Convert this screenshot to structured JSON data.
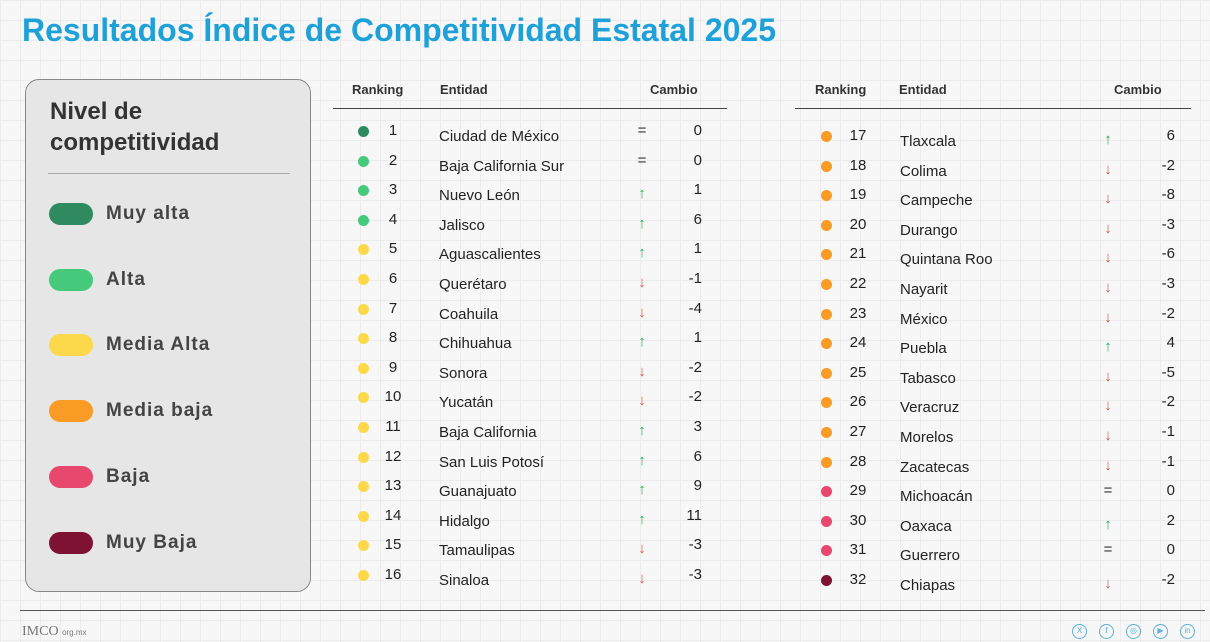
{
  "title": "Resultados Índice de Competitividad Estatal 2025",
  "colors": {
    "title": "#1ea1d8",
    "muy_alta": "#2f8a5f",
    "alta": "#45c97a",
    "media_alta": "#fcd94a",
    "media_baja": "#f99b25",
    "baja": "#e8476e",
    "muy_baja": "#7d1233",
    "up": "#2eaa5a",
    "down": "#d9534f"
  },
  "legend": {
    "title": "Nivel de competitividad",
    "items": [
      {
        "key": "muy_alta",
        "label": "Muy alta"
      },
      {
        "key": "alta",
        "label": "Alta"
      },
      {
        "key": "media_alta",
        "label": "Media Alta"
      },
      {
        "key": "media_baja",
        "label": "Media baja"
      },
      {
        "key": "baja",
        "label": "Baja"
      },
      {
        "key": "muy_baja",
        "label": "Muy Baja"
      }
    ]
  },
  "headers": {
    "ranking": "Ranking",
    "entidad": "Entidad",
    "cambio": "Cambio"
  },
  "rows": [
    {
      "rank": "1",
      "entity": "Ciudad de México",
      "level": "muy_alta",
      "dir": "eq",
      "change": "0"
    },
    {
      "rank": "2",
      "entity": "Baja California Sur",
      "level": "alta",
      "dir": "eq",
      "change": "0"
    },
    {
      "rank": "3",
      "entity": "Nuevo León",
      "level": "alta",
      "dir": "up",
      "change": "1"
    },
    {
      "rank": "4",
      "entity": "Jalisco",
      "level": "alta",
      "dir": "up",
      "change": "6"
    },
    {
      "rank": "5",
      "entity": "Aguascalientes",
      "level": "media_alta",
      "dir": "up",
      "change": "1"
    },
    {
      "rank": "6",
      "entity": "Querétaro",
      "level": "media_alta",
      "dir": "down",
      "change": "-1"
    },
    {
      "rank": "7",
      "entity": "Coahuila",
      "level": "media_alta",
      "dir": "down",
      "change": "-4"
    },
    {
      "rank": "8",
      "entity": "Chihuahua",
      "level": "media_alta",
      "dir": "up",
      "change": "1"
    },
    {
      "rank": "9",
      "entity": "Sonora",
      "level": "media_alta",
      "dir": "down",
      "change": "-2"
    },
    {
      "rank": "10",
      "entity": "Yucatán",
      "level": "media_alta",
      "dir": "down",
      "change": "-2"
    },
    {
      "rank": "11",
      "entity": "Baja California",
      "level": "media_alta",
      "dir": "up",
      "change": "3"
    },
    {
      "rank": "12",
      "entity": "San Luis Potosí",
      "level": "media_alta",
      "dir": "up",
      "change": "6"
    },
    {
      "rank": "13",
      "entity": "Guanajuato",
      "level": "media_alta",
      "dir": "up",
      "change": "9"
    },
    {
      "rank": "14",
      "entity": "Hidalgo",
      "level": "media_alta",
      "dir": "up",
      "change": "11"
    },
    {
      "rank": "15",
      "entity": "Tamaulipas",
      "level": "media_alta",
      "dir": "down",
      "change": "-3"
    },
    {
      "rank": "16",
      "entity": "Sinaloa",
      "level": "media_alta",
      "dir": "down",
      "change": "-3"
    },
    {
      "rank": "17",
      "entity": "Tlaxcala",
      "level": "media_baja",
      "dir": "up",
      "change": "6"
    },
    {
      "rank": "18",
      "entity": "Colima",
      "level": "media_baja",
      "dir": "down",
      "change": "-2"
    },
    {
      "rank": "19",
      "entity": "Campeche",
      "level": "media_baja",
      "dir": "down",
      "change": "-8"
    },
    {
      "rank": "20",
      "entity": "Durango",
      "level": "media_baja",
      "dir": "down",
      "change": "-3"
    },
    {
      "rank": "21",
      "entity": "Quintana Roo",
      "level": "media_baja",
      "dir": "down",
      "change": "-6"
    },
    {
      "rank": "22",
      "entity": "Nayarit",
      "level": "media_baja",
      "dir": "down",
      "change": "-3"
    },
    {
      "rank": "23",
      "entity": "México",
      "level": "media_baja",
      "dir": "down",
      "change": "-2"
    },
    {
      "rank": "24",
      "entity": "Puebla",
      "level": "media_baja",
      "dir": "up",
      "change": "4"
    },
    {
      "rank": "25",
      "entity": "Tabasco",
      "level": "media_baja",
      "dir": "down",
      "change": "-5"
    },
    {
      "rank": "26",
      "entity": "Veracruz",
      "level": "media_baja",
      "dir": "down",
      "change": "-2"
    },
    {
      "rank": "27",
      "entity": "Morelos",
      "level": "media_baja",
      "dir": "down",
      "change": "-1"
    },
    {
      "rank": "28",
      "entity": "Zacatecas",
      "level": "media_baja",
      "dir": "down",
      "change": "-1"
    },
    {
      "rank": "29",
      "entity": "Michoacán",
      "level": "baja",
      "dir": "eq",
      "change": "0"
    },
    {
      "rank": "30",
      "entity": "Oaxaca",
      "level": "baja",
      "dir": "up",
      "change": "2"
    },
    {
      "rank": "31",
      "entity": "Guerrero",
      "level": "baja",
      "dir": "eq",
      "change": "0"
    },
    {
      "rank": "32",
      "entity": "Chiapas",
      "level": "muy_baja",
      "dir": "down",
      "change": "-2"
    }
  ],
  "footer": {
    "logo": "IMCO",
    "domain": "org.mx",
    "social": [
      "x-icon",
      "facebook-icon",
      "instagram-icon",
      "youtube-icon",
      "linkedin-icon"
    ]
  }
}
